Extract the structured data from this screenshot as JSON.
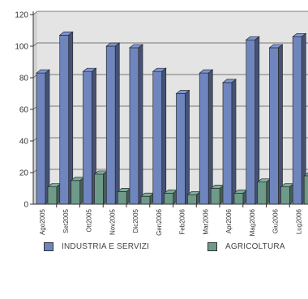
{
  "chart_data": {
    "type": "bar",
    "categories": [
      "Ago2005",
      "Set2005",
      "Ott2005",
      "Nov2005",
      "Dic2005",
      "Gen2006",
      "Feb2006",
      "Mar2006",
      "Apr2006",
      "Mag2006",
      "Giu2006",
      "Lug2006"
    ],
    "series": [
      {
        "name": "INDUSTRIA E SERVIZI",
        "color": "#6f85be",
        "values": [
          83,
          107,
          84,
          100,
          99,
          84,
          70,
          83,
          77,
          104,
          99,
          106
        ]
      },
      {
        "name": "AGRICOLTURA",
        "color": "#6e9a8a",
        "values": [
          11,
          15,
          19,
          8,
          5,
          7,
          6,
          10,
          7,
          14,
          11,
          18
        ]
      }
    ],
    "yticks": [
      0,
      20,
      40,
      60,
      80,
      100,
      120
    ],
    "ylim": [
      0,
      120
    ],
    "grid": true,
    "legend_position": "bottom"
  },
  "legend": [
    {
      "label": "INDUSTRIA E SERVIZI",
      "color": "#6f85be"
    },
    {
      "label": "AGRICOLTURA",
      "color": "#6e9a8a"
    }
  ]
}
